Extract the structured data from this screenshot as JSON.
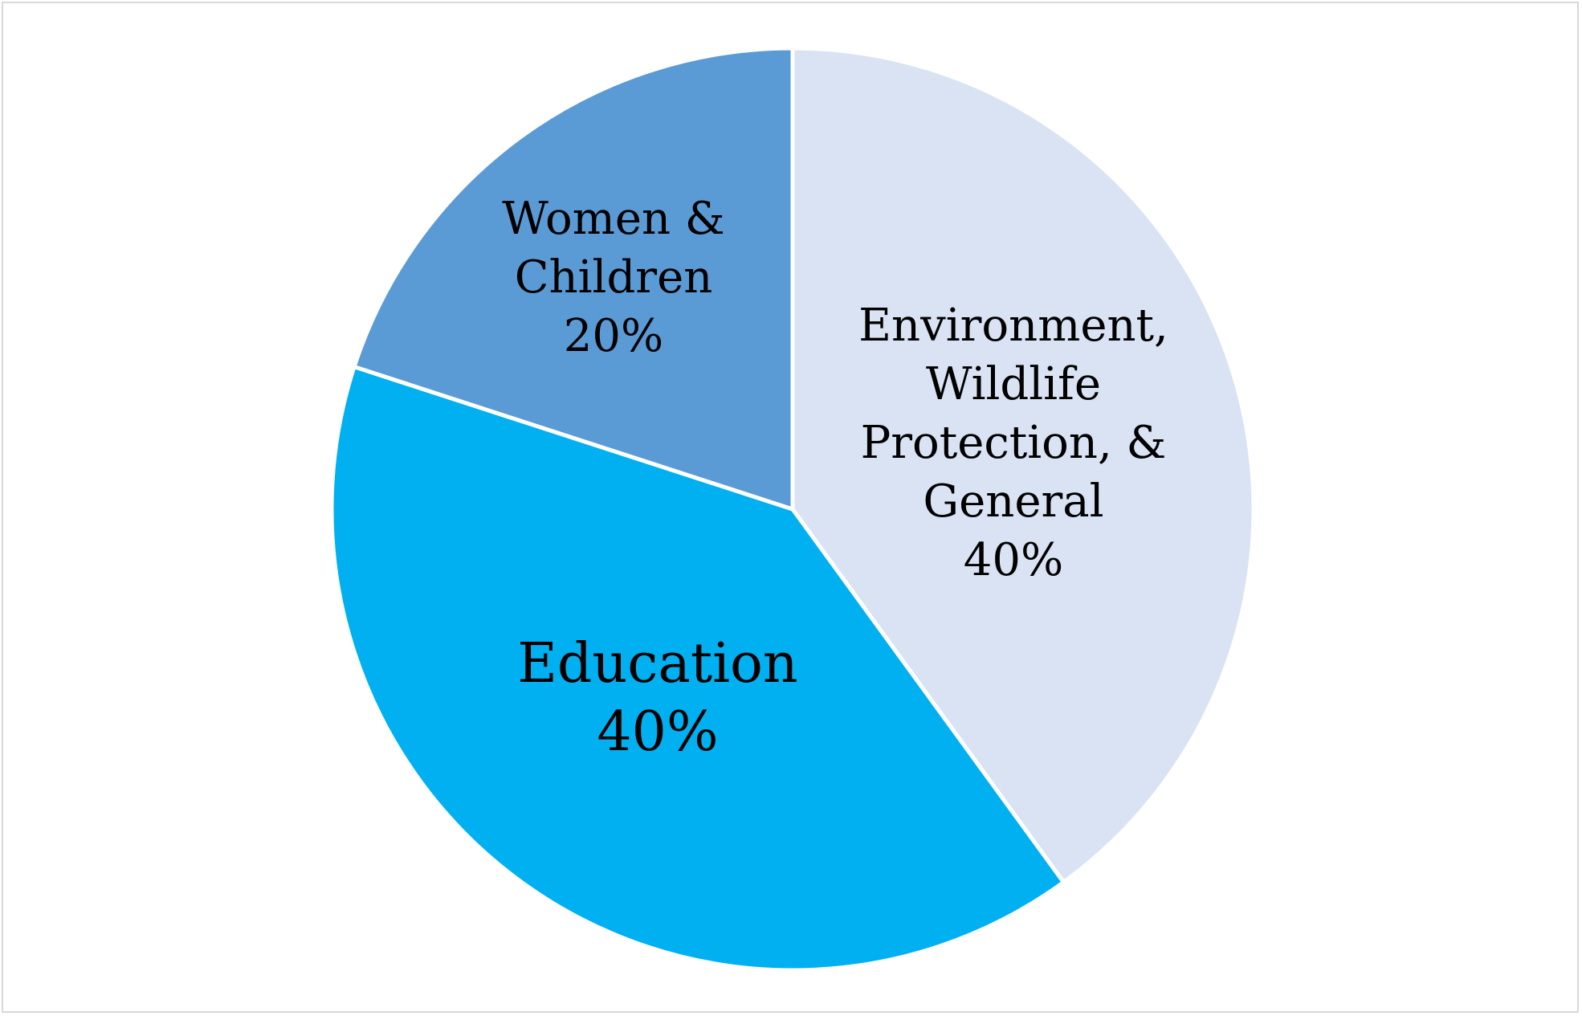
{
  "chart_data": {
    "type": "pie",
    "title": "",
    "start_angle_deg": 0,
    "direction": "clockwise",
    "slices": [
      {
        "label_lines": [
          "Environment,",
          "Wildlife",
          "Protection, &",
          "General"
        ],
        "percent_label": "40%",
        "value": 40,
        "color": "#dae3f3"
      },
      {
        "label_lines": [
          "Education"
        ],
        "percent_label": "40%",
        "value": 40,
        "color": "#00b0f0"
      },
      {
        "label_lines": [
          "Women &",
          "Children"
        ],
        "percent_label": "20%",
        "value": 20,
        "color": "#5b9bd5"
      }
    ],
    "legend": "none",
    "separator_color": "#ffffff"
  }
}
